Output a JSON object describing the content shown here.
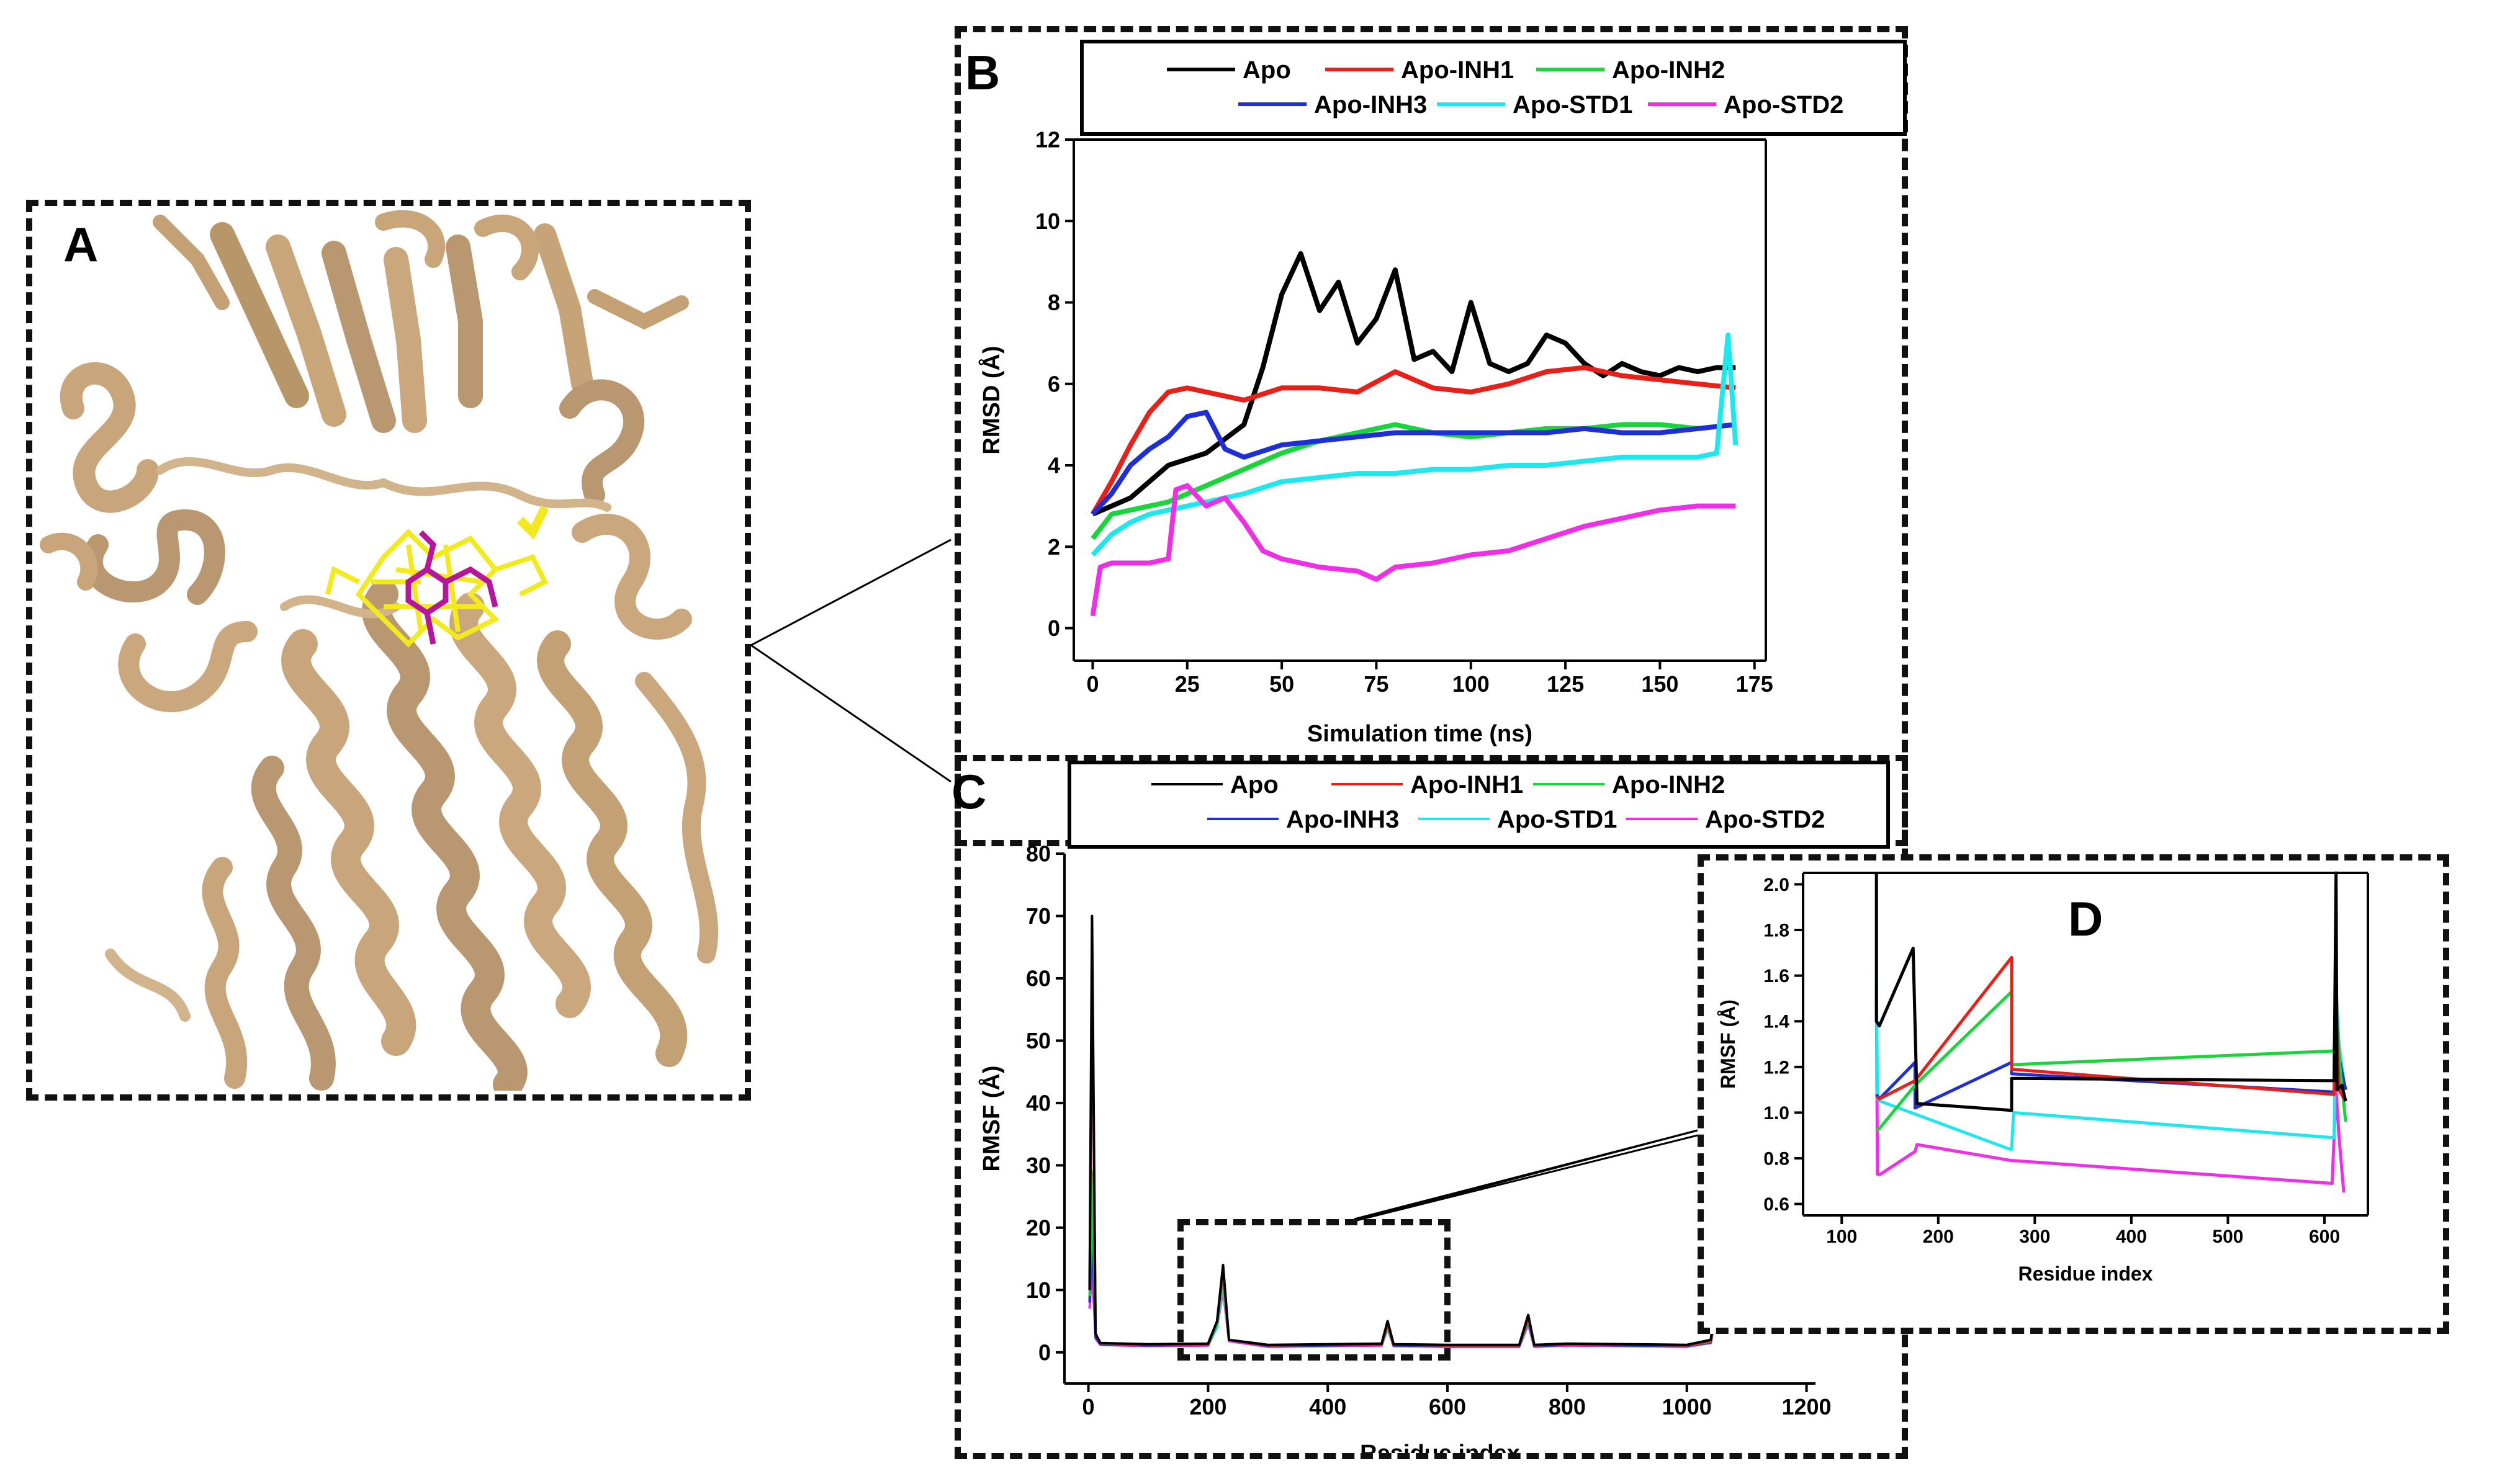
{
  "figure": {
    "panels": {
      "a": {
        "letter": "A",
        "description_image": "protein"
      },
      "b": {
        "letter": "B"
      },
      "c": {
        "letter": "C"
      },
      "d": {
        "letter": "D"
      }
    }
  },
  "series_colors": {
    "Apo": "#000000",
    "Apo-INH1": "#e8201a",
    "Apo-INH2": "#19d43a",
    "Apo-INH3": "#1f2fd6",
    "Apo-STD1": "#1ee7ee",
    "Apo-STD2": "#ee2fe6"
  },
  "protein_colors": {
    "ribbon": "#d2b48c",
    "pocket": "#f2ea1d",
    "ligand": "#b5169c"
  },
  "chart_data": [
    {
      "id": "B",
      "type": "line",
      "xlabel": "Simulation time (ns)",
      "ylabel": "RMSD (Å)",
      "xlim": [
        -5,
        178
      ],
      "ylim": [
        -0.8,
        12
      ],
      "xticks": [
        0,
        25,
        50,
        75,
        100,
        125,
        150,
        175
      ],
      "yticks": [
        0,
        2,
        4,
        6,
        8,
        10,
        12
      ],
      "legend": [
        "Apo",
        "Apo-INH1",
        "Apo-INH2",
        "Apo-INH3",
        "Apo-STD1",
        "Apo-STD2"
      ],
      "series": [
        {
          "name": "Apo",
          "x": [
            0,
            10,
            20,
            30,
            40,
            45,
            50,
            55,
            60,
            65,
            70,
            75,
            80,
            85,
            90,
            95,
            100,
            105,
            110,
            115,
            120,
            125,
            130,
            135,
            140,
            145,
            150,
            155,
            160,
            165,
            170
          ],
          "y": [
            2.8,
            3.2,
            4.0,
            4.3,
            5.0,
            6.4,
            8.2,
            9.2,
            7.8,
            8.5,
            7.0,
            7.6,
            8.8,
            6.6,
            6.8,
            6.3,
            8.0,
            6.5,
            6.3,
            6.5,
            7.2,
            7.0,
            6.5,
            6.2,
            6.5,
            6.3,
            6.2,
            6.4,
            6.3,
            6.4,
            6.4
          ]
        },
        {
          "name": "Apo-INH1",
          "x": [
            0,
            5,
            10,
            15,
            20,
            25,
            30,
            40,
            50,
            60,
            70,
            80,
            90,
            100,
            110,
            120,
            130,
            140,
            150,
            160,
            170
          ],
          "y": [
            2.8,
            3.6,
            4.5,
            5.3,
            5.8,
            5.9,
            5.8,
            5.6,
            5.9,
            5.9,
            5.8,
            6.3,
            5.9,
            5.8,
            6.0,
            6.3,
            6.4,
            6.2,
            6.1,
            6.0,
            5.9
          ]
        },
        {
          "name": "Apo-INH2",
          "x": [
            0,
            5,
            10,
            15,
            20,
            30,
            40,
            50,
            60,
            70,
            80,
            90,
            100,
            110,
            120,
            130,
            140,
            150,
            160,
            170
          ],
          "y": [
            2.2,
            2.8,
            2.9,
            3.0,
            3.1,
            3.5,
            3.9,
            4.3,
            4.6,
            4.8,
            5.0,
            4.8,
            4.7,
            4.8,
            4.9,
            4.9,
            5.0,
            5.0,
            4.9,
            5.0
          ]
        },
        {
          "name": "Apo-INH3",
          "x": [
            0,
            5,
            10,
            15,
            20,
            25,
            30,
            35,
            40,
            50,
            60,
            70,
            80,
            90,
            100,
            110,
            120,
            130,
            140,
            150,
            160,
            170
          ],
          "y": [
            2.8,
            3.3,
            4.0,
            4.4,
            4.7,
            5.2,
            5.3,
            4.4,
            4.2,
            4.5,
            4.6,
            4.7,
            4.8,
            4.8,
            4.8,
            4.8,
            4.8,
            4.9,
            4.8,
            4.8,
            4.9,
            5.0
          ]
        },
        {
          "name": "Apo-STD1",
          "x": [
            0,
            5,
            10,
            15,
            20,
            30,
            40,
            50,
            60,
            70,
            80,
            90,
            100,
            110,
            120,
            130,
            140,
            150,
            160,
            165,
            168,
            170
          ],
          "y": [
            1.8,
            2.3,
            2.6,
            2.8,
            2.9,
            3.1,
            3.3,
            3.6,
            3.7,
            3.8,
            3.8,
            3.9,
            3.9,
            4.0,
            4.0,
            4.1,
            4.2,
            4.2,
            4.2,
            4.3,
            7.2,
            4.5
          ]
        },
        {
          "name": "Apo-STD2",
          "x": [
            0,
            2,
            5,
            10,
            15,
            20,
            22,
            25,
            30,
            35,
            40,
            45,
            50,
            60,
            70,
            75,
            80,
            90,
            100,
            110,
            120,
            130,
            140,
            150,
            160,
            170
          ],
          "y": [
            0.3,
            1.5,
            1.6,
            1.6,
            1.6,
            1.7,
            3.4,
            3.5,
            3.0,
            3.2,
            2.6,
            1.9,
            1.7,
            1.5,
            1.4,
            1.2,
            1.5,
            1.6,
            1.8,
            1.9,
            2.2,
            2.5,
            2.7,
            2.9,
            3.0,
            3.0
          ]
        }
      ]
    },
    {
      "id": "C",
      "type": "line",
      "xlabel": "Residue index",
      "ylabel": "RMSF (Å)",
      "xlim": [
        -40,
        1215
      ],
      "ylim": [
        -5,
        80
      ],
      "xticks": [
        0,
        200,
        400,
        600,
        800,
        1000,
        1200
      ],
      "yticks": [
        0,
        10,
        20,
        30,
        40,
        50,
        60,
        70,
        80
      ],
      "legend": [
        "Apo",
        "Apo-INH1",
        "Apo-INH2",
        "Apo-INH3",
        "Apo-STD1",
        "Apo-STD2"
      ],
      "series": [
        {
          "name": "Apo",
          "x": [
            2,
            6,
            12,
            20,
            100,
            200,
            215,
            225,
            235,
            300,
            400,
            490,
            500,
            510,
            600,
            720,
            735,
            745,
            800,
            900,
            1000,
            1040,
            1048
          ],
          "y": [
            10,
            70,
            3,
            1.5,
            1.3,
            1.4,
            5,
            14,
            2,
            1.2,
            1.3,
            1.4,
            5,
            1.3,
            1.2,
            1.2,
            6,
            1.2,
            1.4,
            1.3,
            1.2,
            2.0,
            8
          ]
        },
        {
          "name": "Apo-INH1",
          "x": [
            2,
            6,
            12,
            20,
            100,
            200,
            215,
            225,
            235,
            300,
            400,
            490,
            500,
            510,
            600,
            720,
            735,
            745,
            800,
            900,
            1000,
            1040,
            1048
          ],
          "y": [
            10,
            63,
            3,
            1.4,
            1.2,
            1.3,
            5,
            13,
            2,
            1.1,
            1.2,
            1.3,
            4.5,
            1.2,
            1.1,
            1.1,
            5.5,
            1.1,
            1.3,
            1.2,
            1.1,
            1.8,
            7
          ]
        },
        {
          "name": "Apo-INH2",
          "x": [
            2,
            6,
            12,
            20,
            100,
            200,
            215,
            225,
            235,
            300,
            400,
            490,
            500,
            510,
            600,
            720,
            735,
            745,
            800,
            900,
            1000,
            1040,
            1048
          ],
          "y": [
            9,
            29,
            3,
            1.4,
            1.2,
            1.3,
            4.5,
            12,
            2,
            1.1,
            1.2,
            1.3,
            4.2,
            1.2,
            1.1,
            1.1,
            5.2,
            1.1,
            1.3,
            1.2,
            1.1,
            1.7,
            7
          ]
        },
        {
          "name": "Apo-INH3",
          "x": [
            2,
            6,
            12,
            20,
            100,
            200,
            215,
            225,
            235,
            300,
            400,
            490,
            500,
            510,
            600,
            720,
            735,
            745,
            800,
            900,
            1000,
            1040,
            1048
          ],
          "y": [
            8,
            20,
            2.5,
            1.3,
            1.1,
            1.2,
            4.5,
            12,
            2,
            1.0,
            1.1,
            1.2,
            4.6,
            1.1,
            1.0,
            1.0,
            5.0,
            1.0,
            1.2,
            1.1,
            1.0,
            1.6,
            6.5
          ]
        },
        {
          "name": "Apo-STD1",
          "x": [
            2,
            6,
            12,
            20,
            100,
            200,
            215,
            225,
            235,
            300,
            400,
            490,
            500,
            510,
            600,
            720,
            735,
            745,
            800,
            900,
            1000,
            1040,
            1048
          ],
          "y": [
            8,
            28,
            2.5,
            1.3,
            1.1,
            1.2,
            4,
            11,
            2,
            1.0,
            1.1,
            1.2,
            4.0,
            1.1,
            1.0,
            1.0,
            4.8,
            1.0,
            1.2,
            1.1,
            1.0,
            1.6,
            6
          ]
        },
        {
          "name": "Apo-STD2",
          "x": [
            2,
            6,
            12,
            20,
            100,
            200,
            215,
            225,
            235,
            300,
            400,
            490,
            500,
            510,
            600,
            720,
            735,
            745,
            800,
            900,
            1000,
            1040,
            1048
          ],
          "y": [
            7,
            14,
            2.2,
            1.2,
            1.0,
            1.1,
            4,
            10,
            1.8,
            0.9,
            1.0,
            1.1,
            3.8,
            1.0,
            0.9,
            0.9,
            4.5,
            0.9,
            1.1,
            1.0,
            0.9,
            1.5,
            5.5
          ]
        }
      ]
    },
    {
      "id": "D",
      "type": "line",
      "xlabel": "Residue index",
      "ylabel": "RMSF (Å)",
      "xlim": [
        60,
        645
      ],
      "ylim": [
        0.55,
        2.05
      ],
      "xticks": [
        100,
        200,
        300,
        400,
        500,
        600
      ],
      "yticks": [
        0.6,
        0.8,
        1.0,
        1.2,
        1.4,
        1.6,
        1.8,
        2.0
      ],
      "series": [
        {
          "name": "Apo",
          "x": [
            136,
            136,
            139,
            174,
            178,
            276,
            276,
            610,
            612,
            613,
            618,
            622
          ],
          "y": [
            2.05,
            1.4,
            1.38,
            1.72,
            1.04,
            1.01,
            1.15,
            1.14,
            2.05,
            1.1,
            1.12,
            1.05
          ]
        },
        {
          "name": "Apo-INH1",
          "x": [
            136,
            139,
            176,
            276,
            276,
            610,
            612,
            615,
            622
          ],
          "y": [
            1.07,
            1.06,
            1.14,
            1.68,
            1.19,
            1.08,
            1.5,
            1.1,
            1.05
          ]
        },
        {
          "name": "Apo-INH2",
          "x": [
            136,
            139,
            176,
            276,
            276,
            610,
            612,
            616,
            622
          ],
          "y": [
            0.92,
            0.93,
            1.12,
            1.53,
            1.21,
            1.27,
            1.48,
            1.2,
            0.96
          ]
        },
        {
          "name": "Apo-INH3",
          "x": [
            136,
            139,
            176,
            176,
            276,
            276,
            610,
            612,
            616,
            622
          ],
          "y": [
            1.08,
            1.06,
            1.22,
            1.02,
            1.22,
            1.17,
            1.09,
            1.42,
            1.22,
            1.1
          ]
        },
        {
          "name": "Apo-STD1",
          "x": [
            136,
            137,
            140,
            274,
            276,
            278,
            610,
            612,
            615,
            620
          ],
          "y": [
            1.58,
            1.06,
            1.05,
            0.84,
            0.84,
            1.0,
            0.89,
            1.56,
            1.3,
            1.14
          ]
        },
        {
          "name": "Apo-STD2",
          "x": [
            136,
            137,
            140,
            176,
            178,
            276,
            278,
            608,
            612,
            615,
            620
          ],
          "y": [
            1.5,
            0.73,
            0.73,
            0.83,
            0.86,
            0.79,
            0.79,
            0.69,
            1.1,
            0.9,
            0.65
          ]
        }
      ]
    }
  ]
}
